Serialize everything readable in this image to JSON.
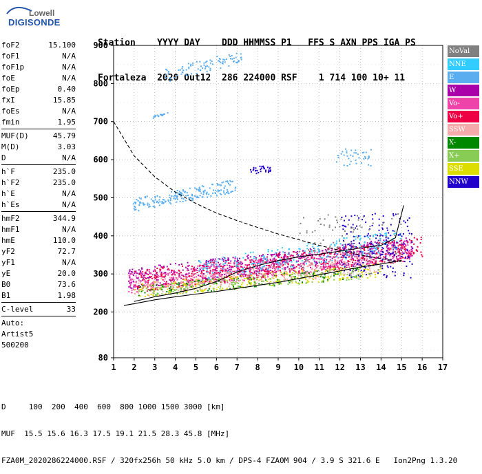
{
  "logo": {
    "line1": "Lowell",
    "line2": "DIGISONDE"
  },
  "header": {
    "labels": "Station    YYYY DAY    DDD HHMMSS P1   FFS S AXN PPS IGA PS",
    "values": "Fortaleza  2020 Out12  286 224000 RSF    1 714 100 10+ 11"
  },
  "params": {
    "group1": [
      {
        "name": "foF2",
        "value": "15.100"
      },
      {
        "name": "foF1",
        "value": "N/A"
      },
      {
        "name": "foF1p",
        "value": "N/A"
      },
      {
        "name": "foE",
        "value": "N/A"
      },
      {
        "name": "foEp",
        "value": "0.40"
      },
      {
        "name": "fxI",
        "value": "15.85"
      },
      {
        "name": "foEs",
        "value": "N/A"
      },
      {
        "name": "fmin",
        "value": "1.95"
      }
    ],
    "group2": [
      {
        "name": "MUF(D)",
        "value": "45.79"
      },
      {
        "name": "M(D)",
        "value": "3.03"
      },
      {
        "name": "D",
        "value": "N/A"
      }
    ],
    "group3": [
      {
        "name": "h`F",
        "value": "235.0"
      },
      {
        "name": "h`F2",
        "value": "235.0"
      },
      {
        "name": "h`E",
        "value": "N/A"
      },
      {
        "name": "h`Es",
        "value": "N/A"
      }
    ],
    "group4": [
      {
        "name": "hmF2",
        "value": "344.9"
      },
      {
        "name": "hmF1",
        "value": "N/A"
      },
      {
        "name": "hmE",
        "value": "110.0"
      },
      {
        "name": "yF2",
        "value": "72.7"
      },
      {
        "name": "yF1",
        "value": "N/A"
      },
      {
        "name": "yE",
        "value": "20.0"
      },
      {
        "name": "B0",
        "value": "73.6"
      },
      {
        "name": "B1",
        "value": "1.98"
      }
    ],
    "group5": [
      {
        "name": "C-level",
        "value": "33"
      }
    ],
    "auto": {
      "line1": "Auto:",
      "line2": "Artist5",
      "line3": "500200"
    }
  },
  "legend": [
    {
      "label": "NoVal",
      "color": "#808080"
    },
    {
      "label": "NNE",
      "color": "#33ccff"
    },
    {
      "label": "E",
      "color": "#5aaef0"
    },
    {
      "label": "W",
      "color": "#aa00aa"
    },
    {
      "label": "Vo-",
      "color": "#ee44aa"
    },
    {
      "label": "Vo+",
      "color": "#ee0044"
    },
    {
      "label": "SSW",
      "color": "#f4aaaa"
    },
    {
      "label": "X-",
      "color": "#008800"
    },
    {
      "label": "X+",
      "color": "#88cc55"
    },
    {
      "label": "SSE",
      "color": "#dddd00"
    },
    {
      "label": "NNW",
      "color": "#2200cc"
    }
  ],
  "bottom": {
    "line1": "D     100  200  400  600  800 1000 1500 3000 [km]",
    "line2": "MUF  15.5 15.6 16.3 17.5 19.1 21.5 28.3 45.8 [MHz]",
    "line3": "FZA0M_2020286224000.RSF / 320fx256h 50 kHz 5.0 km / DPS-4 FZA0M 904 / 3.9 S 321.6 E   Ion2Png 1.3.20"
  },
  "chart_data": {
    "type": "scatter",
    "xlim": [
      1,
      17
    ],
    "ylim": [
      80,
      900
    ],
    "xticks": [
      1,
      2,
      3,
      4,
      5,
      6,
      7,
      8,
      9,
      10,
      11,
      12,
      13,
      14,
      15,
      16,
      17
    ],
    "yticks": [
      80,
      200,
      300,
      400,
      500,
      600,
      700,
      800,
      900
    ],
    "grid": true,
    "legend_position": "right",
    "curves": [
      {
        "style": "dashed",
        "points": [
          [
            1,
            700
          ],
          [
            1.5,
            655
          ],
          [
            2,
            610
          ],
          [
            3,
            555
          ],
          [
            4,
            515
          ],
          [
            5,
            485
          ],
          [
            6,
            460
          ],
          [
            7,
            440
          ],
          [
            8,
            422
          ],
          [
            9,
            405
          ],
          [
            10,
            390
          ],
          [
            11,
            375
          ],
          [
            12,
            362
          ],
          [
            13,
            350
          ],
          [
            14,
            340
          ],
          [
            15,
            332
          ]
        ]
      },
      {
        "style": "solid",
        "points": [
          [
            1.5,
            217
          ],
          [
            2,
            222
          ],
          [
            3,
            232
          ],
          [
            4,
            240
          ],
          [
            5,
            247
          ],
          [
            6,
            254
          ],
          [
            7,
            262
          ],
          [
            8,
            270
          ],
          [
            9,
            278
          ],
          [
            10,
            288
          ],
          [
            11,
            298
          ],
          [
            12,
            308
          ],
          [
            13,
            318
          ],
          [
            14,
            326
          ],
          [
            15,
            336
          ]
        ]
      },
      {
        "style": "solid",
        "points": [
          [
            2,
            228
          ],
          [
            3,
            240
          ],
          [
            4,
            250
          ],
          [
            5,
            262
          ],
          [
            6,
            280
          ],
          [
            7,
            305
          ],
          [
            8,
            322
          ],
          [
            9,
            335
          ],
          [
            10,
            345
          ],
          [
            11,
            352
          ],
          [
            12,
            360
          ],
          [
            13,
            368
          ],
          [
            14,
            375
          ],
          [
            14.7,
            395
          ],
          [
            15.1,
            480
          ]
        ]
      }
    ],
    "clusters": [
      {
        "legend": "E",
        "x0": 1.9,
        "x1": 6.9,
        "y0": 465,
        "y1": 550,
        "n": 200,
        "rise": true
      },
      {
        "legend": "E",
        "x0": 3.5,
        "x1": 7.2,
        "y0": 805,
        "y1": 890,
        "n": 90,
        "rise": true
      },
      {
        "legend": "E",
        "x0": 2.9,
        "x1": 3.6,
        "y0": 710,
        "y1": 728,
        "n": 18,
        "rise": true
      },
      {
        "legend": "E",
        "x0": 11.8,
        "x1": 13.5,
        "y0": 585,
        "y1": 630,
        "n": 40,
        "rise": false
      },
      {
        "legend": "NNW",
        "x0": 7.6,
        "x1": 8.6,
        "y0": 565,
        "y1": 585,
        "n": 30,
        "rise": false
      },
      {
        "legend": "W",
        "x0": 1.7,
        "x1": 15.5,
        "y0": 260,
        "y1": 400,
        "n": 700,
        "rise": true
      },
      {
        "legend": "Vo-",
        "x0": 1.7,
        "x1": 15.5,
        "y0": 250,
        "y1": 390,
        "n": 600,
        "rise": true
      },
      {
        "legend": "Vo+",
        "x0": 2,
        "x1": 16,
        "y0": 250,
        "y1": 400,
        "n": 500,
        "rise": true
      },
      {
        "legend": "SSW",
        "x0": 2,
        "x1": 14,
        "y0": 240,
        "y1": 350,
        "n": 350,
        "rise": true
      },
      {
        "legend": "NNE",
        "x0": 5,
        "x1": 15,
        "y0": 280,
        "y1": 420,
        "n": 250,
        "rise": true
      },
      {
        "legend": "SSE",
        "x0": 2,
        "x1": 14,
        "y0": 240,
        "y1": 330,
        "n": 250,
        "rise": true
      },
      {
        "legend": "X-",
        "x0": 2,
        "x1": 13,
        "y0": 240,
        "y1": 320,
        "n": 120,
        "rise": true
      },
      {
        "legend": "X+",
        "x0": 2,
        "x1": 13,
        "y0": 240,
        "y1": 320,
        "n": 150,
        "rise": true
      },
      {
        "legend": "NNW",
        "x0": 12,
        "x1": 15.5,
        "y0": 290,
        "y1": 460,
        "n": 180,
        "rise": false
      },
      {
        "legend": "NoVal",
        "x0": 10,
        "x1": 15,
        "y0": 300,
        "y1": 460,
        "n": 120,
        "rise": false
      }
    ]
  }
}
